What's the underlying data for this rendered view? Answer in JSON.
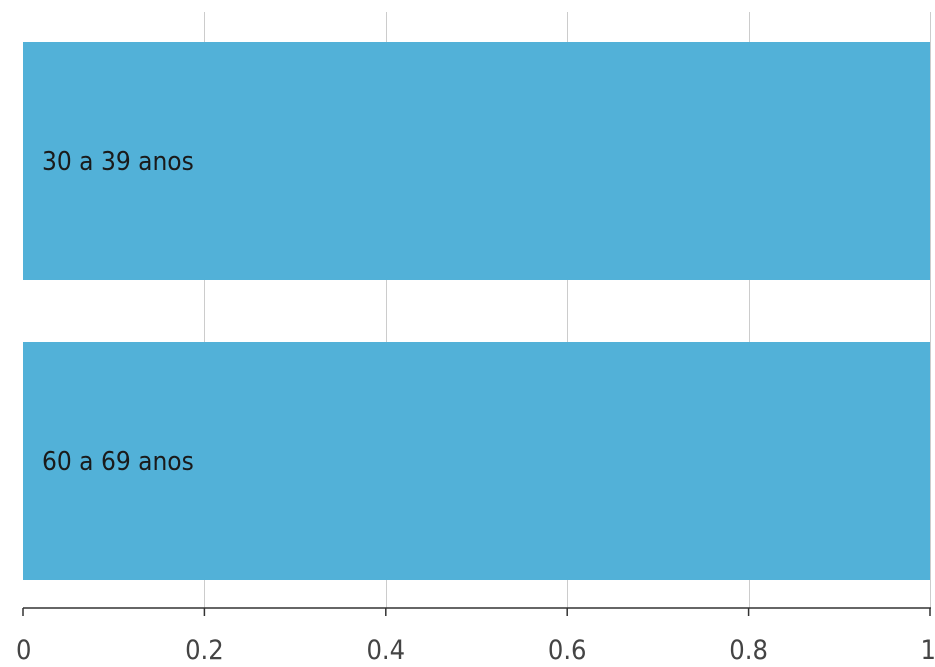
{
  "chart_data": {
    "type": "bar",
    "orientation": "horizontal",
    "categories": [
      "30 a 39 anos",
      "60 a 69 anos"
    ],
    "values": [
      1,
      1
    ],
    "xlim": [
      0,
      1
    ],
    "xticks": [
      0,
      0.2,
      0.4,
      0.6,
      0.8,
      1
    ],
    "xtick_labels": [
      "0",
      "0.2",
      "0.4",
      "0.6",
      "0.8",
      "1"
    ],
    "grid": true,
    "bar_color": "#52b1d8",
    "title": "",
    "xlabel": "",
    "ylabel": ""
  }
}
